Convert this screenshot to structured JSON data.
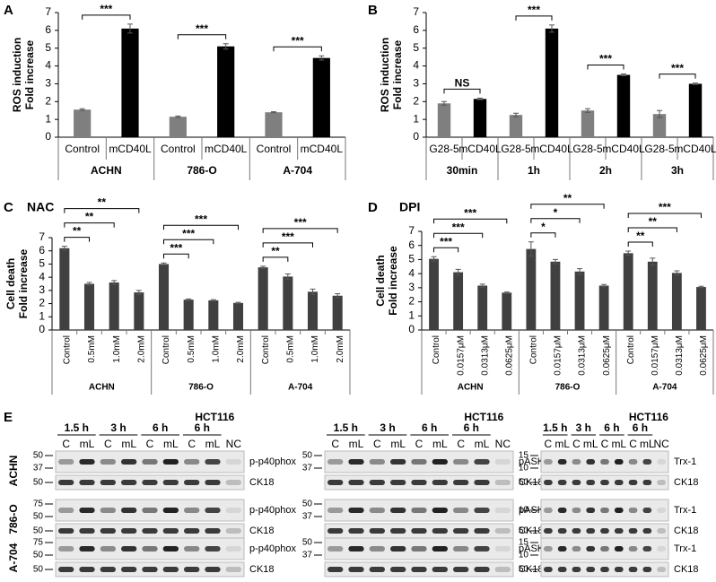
{
  "chart_data": [
    {
      "type": "bar",
      "label": "A",
      "ylabel": [
        "ROS induction",
        "Fold increase"
      ],
      "groups": [
        "ACHN",
        "786-O",
        "A-704"
      ],
      "categories": [
        "Control",
        "mCD40L",
        "Control",
        "mCD40L",
        "Control",
        "mCD40L"
      ],
      "values": [
        1.55,
        6.1,
        1.15,
        5.1,
        1.4,
        4.45
      ],
      "errors": [
        0.05,
        0.25,
        0.04,
        0.15,
        0.03,
        0.12
      ],
      "colors": [
        "#7f7f7f",
        "#000000",
        "#7f7f7f",
        "#000000",
        "#7f7f7f",
        "#000000"
      ],
      "ylim": [
        0,
        7
      ],
      "yticks": [
        0,
        1,
        2,
        3,
        4,
        5,
        6,
        7
      ],
      "annotations": [
        {
          "text": "***",
          "from": 0,
          "to": 1
        },
        {
          "text": "***",
          "from": 2,
          "to": 3
        },
        {
          "text": "***",
          "from": 4,
          "to": 5
        }
      ]
    },
    {
      "type": "bar",
      "label": "B",
      "ylabel": [
        "ROS induction",
        "Fold increase"
      ],
      "groups": [
        "30min",
        "1h",
        "2h",
        "3h"
      ],
      "categories": [
        "G28-5",
        "mCD40L",
        "G28-5",
        "mCD40L",
        "G28-5",
        "mCD40L",
        "G28-5",
        "mCD40L"
      ],
      "values": [
        1.9,
        2.15,
        1.25,
        6.1,
        1.5,
        3.5,
        1.3,
        3.0
      ],
      "errors": [
        0.1,
        0.05,
        0.1,
        0.2,
        0.1,
        0.05,
        0.2,
        0.04
      ],
      "colors": [
        "#7f7f7f",
        "#000000",
        "#7f7f7f",
        "#000000",
        "#7f7f7f",
        "#000000",
        "#7f7f7f",
        "#000000"
      ],
      "ylim": [
        0,
        7
      ],
      "yticks": [
        0,
        1,
        2,
        3,
        4,
        5,
        6,
        7
      ],
      "annotations": [
        {
          "text": "NS",
          "from": 0,
          "to": 1
        },
        {
          "text": "***",
          "from": 2,
          "to": 3
        },
        {
          "text": "***",
          "from": 4,
          "to": 5
        },
        {
          "text": "***",
          "from": 6,
          "to": 7
        }
      ]
    },
    {
      "type": "bar",
      "label": "C",
      "title": "NAC",
      "ylabel": [
        "Cell death",
        "Fold increase"
      ],
      "groups": [
        "ACHN",
        "786-O",
        "A-704"
      ],
      "categories": [
        "Control",
        "0.5mM",
        "1.0mM",
        "2.0mM",
        "Control",
        "0.5mM",
        "1.0mM",
        "2.0mM",
        "Control",
        "0.5mM",
        "1.0mM",
        "2.0mM"
      ],
      "values": [
        6.2,
        3.5,
        3.6,
        2.85,
        5.0,
        2.3,
        2.25,
        2.05,
        4.75,
        4.05,
        2.9,
        2.6
      ],
      "errors": [
        0.15,
        0.1,
        0.15,
        0.15,
        0.08,
        0.05,
        0.05,
        0.05,
        0.08,
        0.2,
        0.2,
        0.15
      ],
      "color": "#404040",
      "ylim": [
        0,
        7
      ],
      "yticks": [
        0,
        1,
        2,
        3,
        4,
        5,
        6,
        7
      ],
      "annotations": [
        {
          "text": "**",
          "from": 0,
          "to": 1
        },
        {
          "text": "**",
          "from": 0,
          "to": 2
        },
        {
          "text": "**",
          "from": 0,
          "to": 3
        },
        {
          "text": "***",
          "from": 4,
          "to": 5
        },
        {
          "text": "***",
          "from": 4,
          "to": 6
        },
        {
          "text": "***",
          "from": 4,
          "to": 7
        },
        {
          "text": "**",
          "from": 8,
          "to": 9
        },
        {
          "text": "***",
          "from": 8,
          "to": 10
        },
        {
          "text": "***",
          "from": 8,
          "to": 11
        }
      ]
    },
    {
      "type": "bar",
      "label": "D",
      "title": "DPI",
      "ylabel": [
        "Cell death",
        "Fold increase"
      ],
      "groups": [
        "ACHN",
        "786-O",
        "A-704"
      ],
      "categories": [
        "Control",
        "0.0157μM",
        "0.0313μM",
        "0.0625μM",
        "Control",
        "0.0157μM",
        "0.0313μM",
        "0.0625μM",
        "Control",
        "0.0157μM",
        "0.0313μM",
        "0.0625μM"
      ],
      "values": [
        5.05,
        4.1,
        3.15,
        2.65,
        5.75,
        4.85,
        4.15,
        3.15,
        5.45,
        4.85,
        4.05,
        3.05
      ],
      "errors": [
        0.15,
        0.2,
        0.1,
        0.05,
        0.5,
        0.15,
        0.2,
        0.08,
        0.15,
        0.25,
        0.15,
        0.05
      ],
      "color": "#404040",
      "ylim": [
        0,
        7
      ],
      "yticks": [
        0,
        1,
        2,
        3,
        4,
        5,
        6,
        7
      ],
      "annotations": [
        {
          "text": "***",
          "from": 0,
          "to": 1
        },
        {
          "text": "***",
          "from": 0,
          "to": 2
        },
        {
          "text": "***",
          "from": 0,
          "to": 3
        },
        {
          "text": "*",
          "from": 4,
          "to": 5
        },
        {
          "text": "*",
          "from": 4,
          "to": 6
        },
        {
          "text": "**",
          "from": 4,
          "to": 7
        },
        {
          "text": "**",
          "from": 8,
          "to": 9
        },
        {
          "text": "**",
          "from": 8,
          "to": 10
        },
        {
          "text": "***",
          "from": 8,
          "to": 11
        }
      ]
    }
  ],
  "blots": {
    "label": "E",
    "cell_line": "HCT116",
    "times": [
      "1.5 h",
      "3 h",
      "6 h",
      "6 h"
    ],
    "lanes": [
      "C",
      "mL",
      "C",
      "mL",
      "C",
      "mL",
      "C",
      "mL",
      "NC"
    ],
    "rows": [
      "ACHN",
      "786-O",
      "A-704"
    ],
    "panels": [
      [
        [
          {
            "name": "p-p40phox",
            "markers": [
              50,
              37
            ]
          },
          {
            "name": "CK18",
            "markers": [
              50
            ]
          }
        ],
        [
          {
            "name": "p-p40phox",
            "markers": [
              75,
              50
            ]
          },
          {
            "name": "CK18",
            "markers": [
              50
            ]
          }
        ],
        [
          {
            "name": "p-p40phox",
            "markers": [
              75,
              50
            ]
          },
          {
            "name": "CK18",
            "markers": [
              50
            ]
          }
        ]
      ],
      [
        [
          {
            "name": "pASK-1",
            "markers": [
              50,
              37
            ]
          },
          {
            "name": "CK18",
            "markers": []
          }
        ],
        [
          {
            "name": "pASK-1",
            "markers": [
              50,
              37
            ]
          },
          {
            "name": "CK18",
            "markers": []
          }
        ],
        [
          {
            "name": "pASK-1",
            "markers": [
              50,
              37
            ]
          },
          {
            "name": "CK18",
            "markers": []
          }
        ]
      ],
      [
        [
          {
            "name": "Trx-1",
            "markers": [
              15,
              10
            ]
          },
          {
            "name": "CK18",
            "markers": [
              50
            ]
          }
        ],
        [
          {
            "name": "Trx-1",
            "markers": [
              10
            ]
          },
          {
            "name": "CK18",
            "markers": [
              50
            ]
          }
        ],
        [
          {
            "name": "Trx-1",
            "markers": [
              15,
              10
            ]
          },
          {
            "name": "CK18",
            "markers": [
              50
            ]
          }
        ]
      ]
    ]
  }
}
